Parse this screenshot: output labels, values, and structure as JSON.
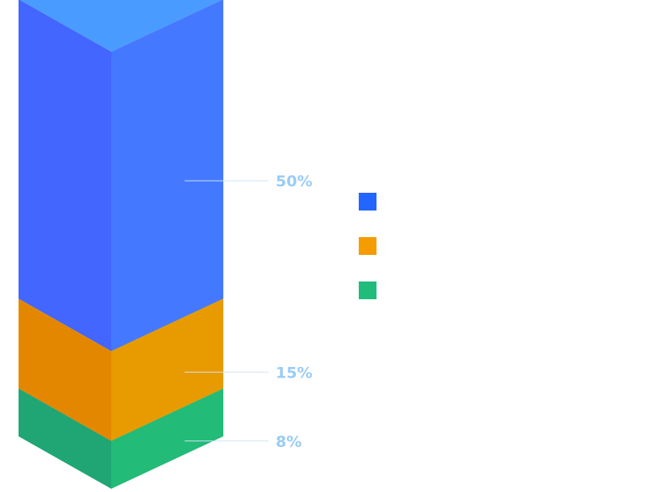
{
  "chart_data": {
    "type": "bar",
    "style": "isometric stacked 3D column",
    "series": [
      {
        "value": 50,
        "label": "50%",
        "color": "#4266FF",
        "top_color": "#4A9BFF",
        "right_color": "#4479FF"
      },
      {
        "value": 15,
        "label": "15%",
        "color": "#E48700",
        "top_color": "#ECA000",
        "right_color": "#E79B00"
      },
      {
        "value": 8,
        "label": "8%",
        "color": "#20A675",
        "top_color": "#26C07F",
        "right_color": "#22BB78"
      }
    ],
    "legend": {
      "position": "right",
      "entries": [
        {
          "color": "#2266FF"
        },
        {
          "color": "#F49C00"
        },
        {
          "color": "#21BB7B"
        }
      ]
    },
    "label_color": "#99CCF6",
    "leader_color": "#CFE3F4",
    "grid": false
  }
}
